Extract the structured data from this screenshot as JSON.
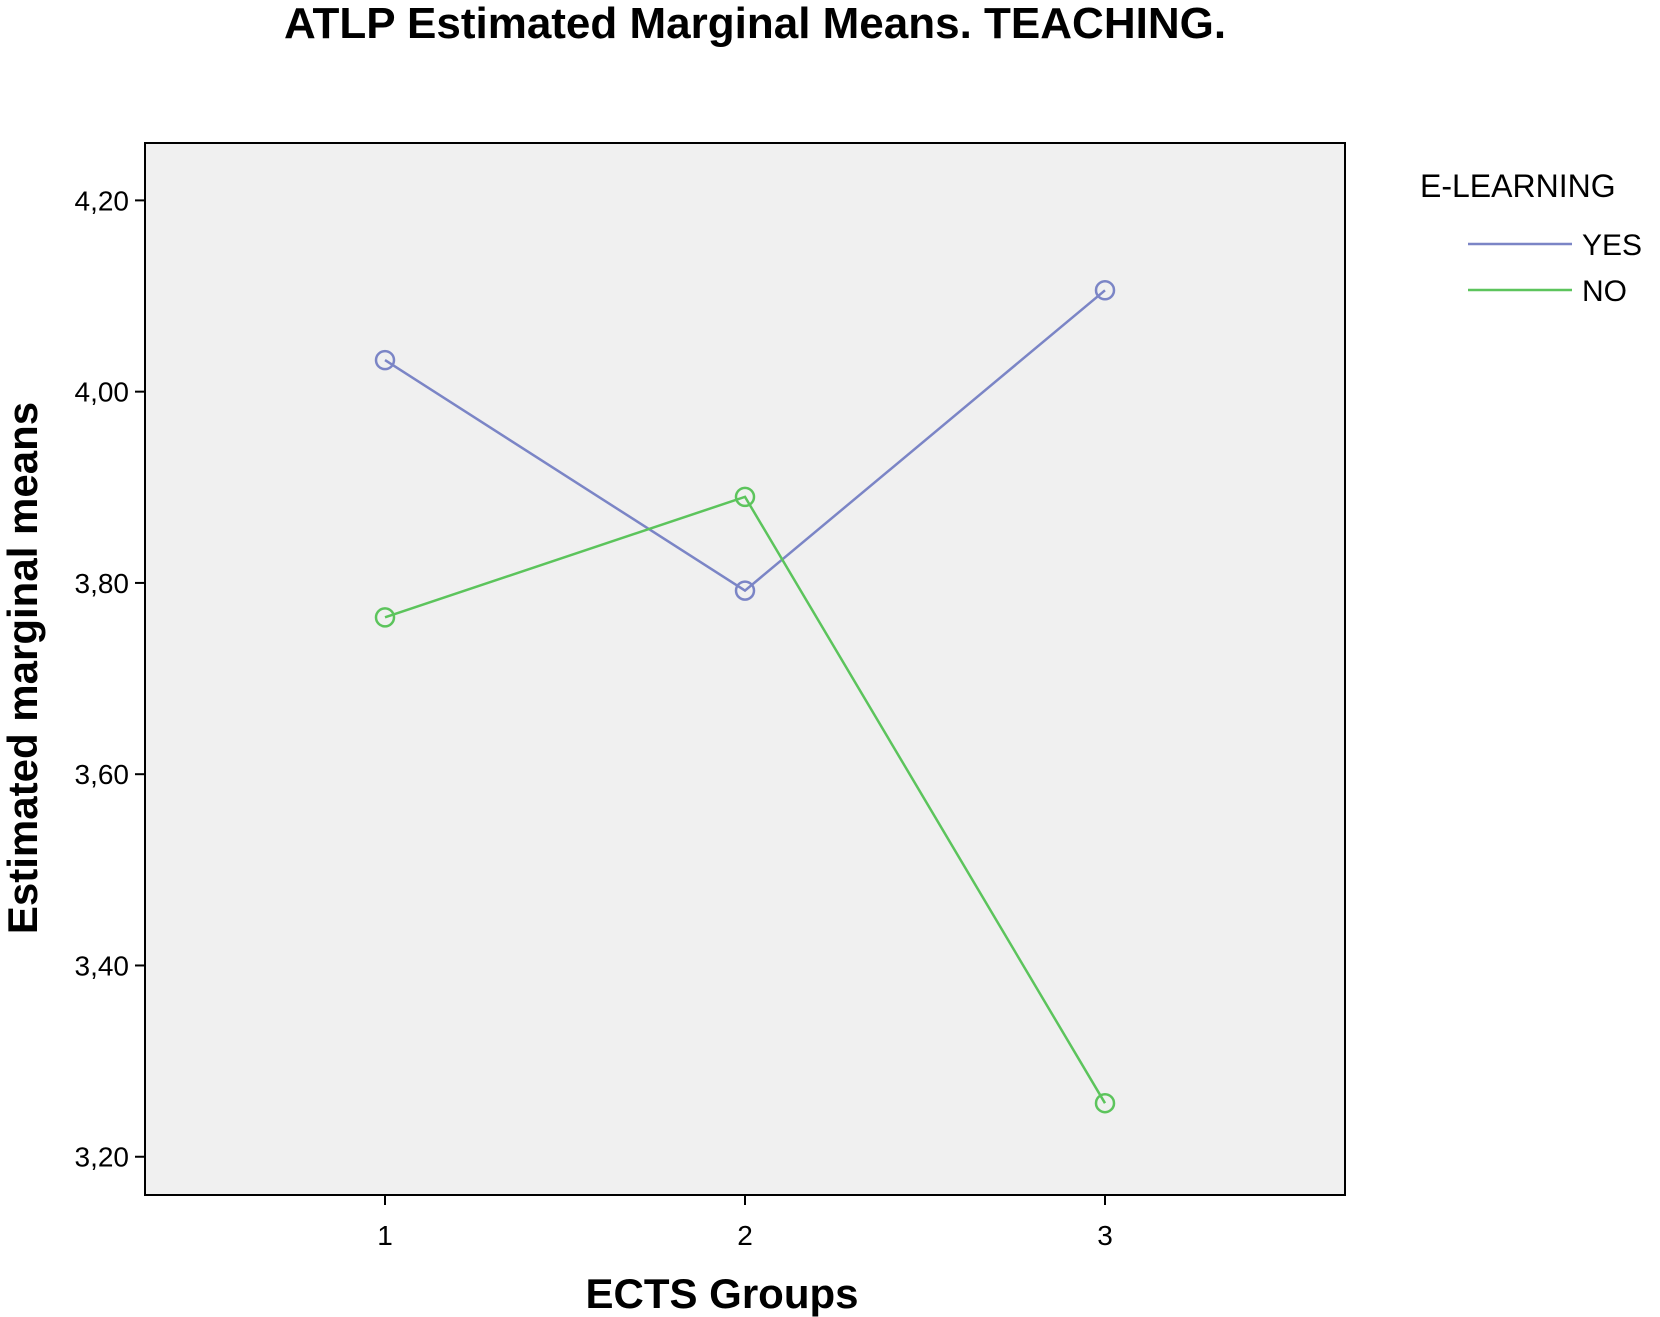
{
  "chart_data": {
    "type": "line",
    "title": "ATLP Estimated Marginal Means. TEACHING.",
    "xlabel": "ECTS Groups",
    "ylabel": "Estimated marginal means",
    "categories": [
      "1",
      "2",
      "3"
    ],
    "yticks": [
      "3,20",
      "3,40",
      "3,60",
      "3,80",
      "4,00",
      "4,20"
    ],
    "ylim": [
      3.16,
      4.26
    ],
    "grid": false,
    "plot_background": "#f0f0f0",
    "legend": {
      "title": "E-LEARNING",
      "placement": "right-top"
    },
    "series": [
      {
        "name": "YES",
        "color": "#7b85c6",
        "values": [
          4.033,
          3.792,
          4.106
        ]
      },
      {
        "name": "NO",
        "color": "#5cc45c",
        "values": [
          3.764,
          3.89,
          3.256
        ]
      }
    ]
  }
}
